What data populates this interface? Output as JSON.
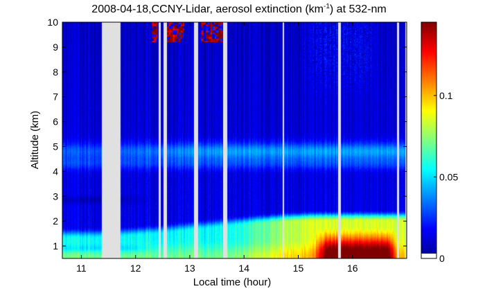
{
  "chart_data": {
    "type": "heatmap",
    "title": "2008-04-18,CCNY-Lidar, aerosol extinction (km",
    "title_sup": "-1",
    "title_suffix": ") at 532-nm",
    "xlabel": "Local time (hour)",
    "ylabel": "Altitude (km)",
    "xlim": [
      10.65,
      17.0
    ],
    "ylim": [
      0.5,
      10
    ],
    "x_ticks": [
      "11",
      "12",
      "13",
      "14",
      "15",
      "16"
    ],
    "y_ticks": [
      "1",
      "2",
      "3",
      "4",
      "5",
      "6",
      "7",
      "8",
      "9",
      "10"
    ],
    "colorbar": {
      "range": [
        0,
        0.145
      ],
      "ticks": [
        "0",
        "0.05",
        "0.1"
      ],
      "colormap": "jet"
    },
    "data_gaps_hours": [
      [
        11.38,
        11.72
      ],
      [
        12.42,
        12.46
      ],
      [
        12.52,
        12.58
      ],
      [
        13.08,
        13.15
      ],
      [
        13.62,
        13.69
      ],
      [
        14.71,
        14.74
      ],
      [
        15.74,
        15.78
      ],
      [
        16.82,
        16.86
      ],
      [
        16.98,
        17.0
      ]
    ],
    "layers": [
      {
        "feature": "boundary layer",
        "altitude_km": [
          0.5,
          2.3
        ],
        "time_hours": [
          10.65,
          17.0
        ],
        "extinction_range": [
          0.04,
          0.14
        ]
      },
      {
        "feature": "residual aerosol layer",
        "altitude_km": [
          2.6,
          3.0
        ],
        "time_hours": [
          10.65,
          12.0
        ],
        "extinction_range": [
          0.01,
          0.03
        ]
      },
      {
        "feature": "elevated aerosol layer",
        "altitude_km": [
          4.2,
          5.3
        ],
        "time_hours": [
          10.65,
          17.0
        ],
        "extinction_range": [
          0.02,
          0.05
        ]
      },
      {
        "feature": "cirrus cloud",
        "altitude_km": [
          9.2,
          10.0
        ],
        "time_hours": [
          12.3,
          13.6
        ],
        "extinction_range": [
          0.1,
          0.145
        ]
      }
    ],
    "grid": false
  }
}
